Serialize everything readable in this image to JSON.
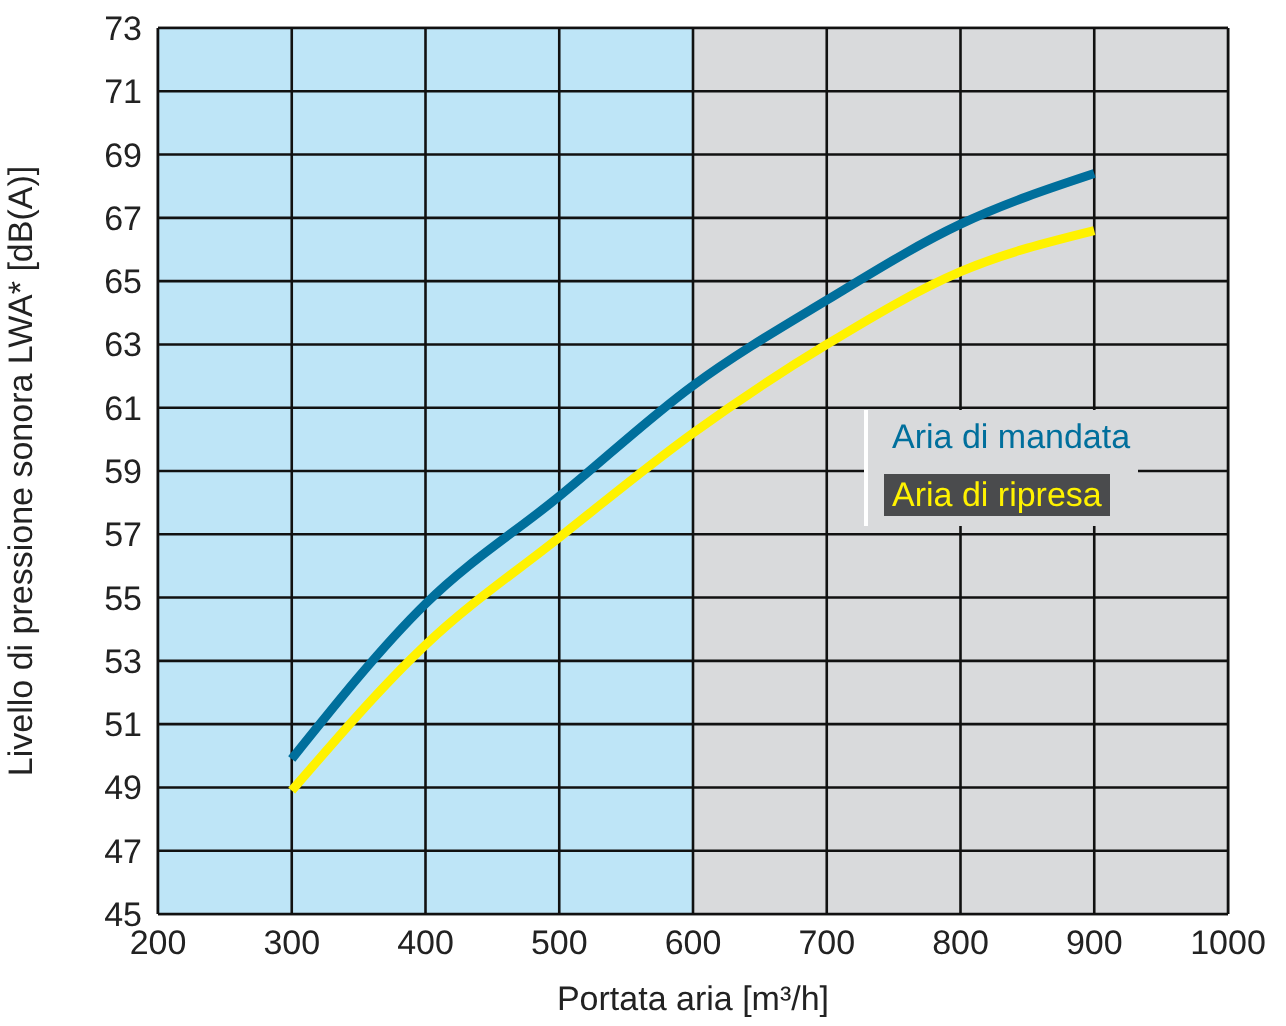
{
  "chart_data": {
    "type": "line",
    "xlabel": "Portata aria [m³/h]",
    "ylabel": "Livello di pressione sonora LWA* [dB(A)]",
    "x": [
      300,
      400,
      500,
      600,
      700,
      800,
      900
    ],
    "series": [
      {
        "name": "Aria di mandata",
        "color": "#006f9c",
        "values": [
          49.9,
          54.8,
          58.2,
          61.7,
          64.4,
          66.8,
          68.4
        ]
      },
      {
        "name": "Aria di ripresa",
        "color": "#fff200",
        "values": [
          48.9,
          53.5,
          56.9,
          60.2,
          63.0,
          65.3,
          66.6
        ]
      }
    ],
    "xlim": [
      200,
      1000
    ],
    "xticks": [
      200,
      300,
      400,
      500,
      600,
      700,
      800,
      900,
      1000
    ],
    "ylim": [
      45,
      73
    ],
    "yticks": [
      45,
      47,
      49,
      51,
      53,
      55,
      57,
      59,
      61,
      63,
      65,
      67,
      69,
      71,
      73
    ],
    "bands": [
      {
        "axis": "x",
        "from": 200,
        "to": 600,
        "color": "#bee5f7"
      }
    ],
    "grid": true,
    "legend": "right",
    "marker": "none",
    "line_style": "solid"
  }
}
